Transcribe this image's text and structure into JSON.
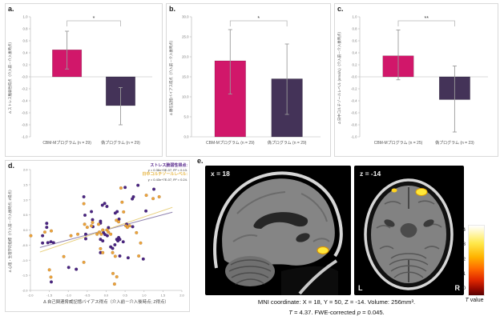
{
  "figure": {
    "panels": {
      "a": "a.",
      "b": "b.",
      "c": "c.",
      "d": "d.",
      "e": "e."
    }
  },
  "colors": {
    "cbm_bar": "#d1176a",
    "sham_bar": "#443358",
    "scatter_purple": "#4a2482",
    "scatter_orange": "#eda33b",
    "trend_purple": "#9083b0",
    "trend_yellow": "#e8cf7a",
    "legend_purple": "#5b2d8e",
    "legend_yellow": "#e6b33c"
  },
  "chart_data": [
    {
      "panel": "a",
      "type": "bar",
      "ylabel": "Δ ストレス脆弱性得点（介入前－介入後時点）",
      "ylim": [
        -1.0,
        1.0
      ],
      "ytick_step": 0.2,
      "categories": [
        "CBM-Mプログラム (n = 29)",
        "偽プログラム (n = 29)"
      ],
      "values": [
        0.45,
        -0.48
      ],
      "errors_low": [
        0.13,
        -0.8
      ],
      "errors_high": [
        0.76,
        -0.18
      ],
      "bar_colors": [
        "#d1176a",
        "#443358"
      ],
      "significance": "*"
    },
    {
      "panel": "b",
      "type": "bar",
      "ylabel": "Δ 顕在記憶バイアス得点（介入前－介入後時点）",
      "ylim": [
        0.0,
        30.0
      ],
      "ytick_step": 5.0,
      "categories": [
        "CBM-Mプログラム (n = 29)",
        "偽プログラム (n = 29)"
      ],
      "values": [
        19.0,
        14.5
      ],
      "errors_low": [
        10.7,
        5.6
      ],
      "errors_high": [
        26.8,
        23.2
      ],
      "bar_colors": [
        "#d1176a",
        "#443358"
      ],
      "significance": "*"
    },
    {
      "panel": "c",
      "type": "bar",
      "ylabel": "Δ 日中コルチゾールレベル (nmol/L)（介入前－介入後時点）",
      "ylim": [
        -1.0,
        1.0
      ],
      "ytick_step": 0.2,
      "categories": [
        "CBM-Mプログラム (n = 25)",
        "偽プログラム (n = 23)"
      ],
      "values": [
        0.35,
        -0.38
      ],
      "errors_low": [
        -0.05,
        -0.92
      ],
      "errors_high": [
        0.78,
        0.18
      ],
      "bar_colors": [
        "#d1176a",
        "#443358"
      ],
      "significance": "**"
    },
    {
      "panel": "d",
      "type": "scatter",
      "xlabel": "Δ 自己関連脅威記憶バイアス得点（介入前－介入後時点; Z得点）",
      "ylabel": "Δ 心理・生理学的指標（介入前－介入後時点; Z得点）",
      "xlim": [
        -2.0,
        2.0
      ],
      "ylim": [
        -2.0,
        2.0
      ],
      "tick_step": 0.5,
      "series": [
        {
          "name": "ストレス脆弱性得点:",
          "equation": "y = 0.36x+3E-07, R² = 0.13.",
          "point_color": "#4a2482",
          "line_color": "#9083b0",
          "trend": {
            "x1": -1.75,
            "y1": -0.58,
            "x2": 1.75,
            "y2": 0.59
          },
          "points": [
            [
              -1.57,
              0.22
            ],
            [
              -1.57,
              0.09
            ],
            [
              -1.68,
              -0.19
            ],
            [
              -1.68,
              -0.43
            ],
            [
              -1.54,
              -0.42
            ],
            [
              -1.46,
              -0.39
            ],
            [
              -1.39,
              -0.42
            ],
            [
              -1.45,
              -1.72
            ],
            [
              -0.99,
              -1.24
            ],
            [
              -0.79,
              -1.3
            ],
            [
              -0.59,
              1.1
            ],
            [
              -0.56,
              0.49
            ],
            [
              -0.39,
              0.61
            ],
            [
              -0.36,
              0.34
            ],
            [
              -0.54,
              -0.14
            ],
            [
              -0.54,
              -0.29
            ],
            [
              -0.35,
              0.11
            ],
            [
              -0.15,
              0.29
            ],
            [
              -0.15,
              0.23
            ],
            [
              -0.1,
              0.82
            ],
            [
              -0.04,
              0.88
            ],
            [
              0.02,
              0.78
            ],
            [
              0.06,
              0.08
            ],
            [
              -0.07,
              -0.09
            ],
            [
              -0.03,
              -0.15
            ],
            [
              0.03,
              -0.19
            ],
            [
              -0.15,
              -0.31
            ],
            [
              -0.09,
              -0.36
            ],
            [
              -0.15,
              -0.75
            ],
            [
              0.12,
              -0.56
            ],
            [
              0.17,
              -0.61
            ],
            [
              0.23,
              -0.49
            ],
            [
              0.28,
              -0.31
            ],
            [
              0.31,
              -0.36
            ],
            [
              0.33,
              -0.25
            ],
            [
              0.36,
              -0.31
            ],
            [
              0.24,
              0.56
            ],
            [
              0.29,
              0.61
            ],
            [
              0.34,
              0.36
            ],
            [
              0.5,
              1.41
            ],
            [
              0.84,
              1.48
            ],
            [
              1.26,
              1.35
            ],
            [
              1.05,
              0.63
            ],
            [
              0.54,
              0.19
            ],
            [
              0.7,
              0.11
            ],
            [
              0.36,
              -0.86
            ],
            [
              0.58,
              -0.92
            ],
            [
              0.98,
              -0.96
            ],
            [
              0.45,
              -0.39
            ],
            [
              0.72,
              1.1
            ],
            [
              0.69,
              1.03
            ]
          ]
        },
        {
          "name": "日中コルチゾールレベル:",
          "equation": "y = 0.43x+7E-07, R² = 0.24.",
          "point_color": "#eda33b",
          "line_color": "#e8cf7a",
          "trend": {
            "x1": -1.75,
            "y1": -0.73,
            "x2": 1.75,
            "y2": 0.75
          },
          "points": [
            [
              -1.99,
              -0.19
            ],
            [
              -1.62,
              -0.07
            ],
            [
              -1.45,
              -0.03
            ],
            [
              -1.5,
              -1.32
            ],
            [
              -1.46,
              -1.56
            ],
            [
              -1.12,
              -0.88
            ],
            [
              -0.93,
              -0.19
            ],
            [
              -0.75,
              -0.14
            ],
            [
              -0.59,
              0.87
            ],
            [
              -0.57,
              0.19
            ],
            [
              -0.5,
              0.09
            ],
            [
              -0.39,
              0.14
            ],
            [
              -0.36,
              0.25
            ],
            [
              -0.59,
              -1.07
            ],
            [
              -0.24,
              -0.14
            ],
            [
              -0.2,
              0.19
            ],
            [
              -0.18,
              -0.07
            ],
            [
              -0.13,
              -0.14
            ],
            [
              -0.09,
              0.0
            ],
            [
              0.02,
              0.0
            ],
            [
              0.06,
              -0.07
            ],
            [
              0.12,
              -0.14
            ],
            [
              -0.09,
              -0.75
            ],
            [
              -0.15,
              -0.62
            ],
            [
              0.17,
              -0.75
            ],
            [
              0.24,
              -0.87
            ],
            [
              0.18,
              -1.44
            ],
            [
              0.22,
              -1.79
            ],
            [
              0.28,
              -1.55
            ],
            [
              0.27,
              0.32
            ],
            [
              0.33,
              0.27
            ],
            [
              0.39,
              1.39
            ],
            [
              0.42,
              0.92
            ],
            [
              0.46,
              0.6
            ],
            [
              0.52,
              0.14
            ],
            [
              0.56,
              0.09
            ],
            [
              0.62,
              0.14
            ],
            [
              1.06,
              1.15
            ],
            [
              1.24,
              1.04
            ],
            [
              1.4,
              1.1
            ],
            [
              0.8,
              -0.09
            ],
            [
              0.91,
              -0.43
            ],
            [
              0.86,
              -0.86
            ]
          ]
        }
      ]
    }
  ],
  "brain": {
    "sagittal_label": "x = 18",
    "axial_label": "z = -14",
    "left_marker": "L",
    "right_marker": "R",
    "colorbar": {
      "ticks": [
        "4",
        "3",
        "2",
        "1",
        "0"
      ],
      "label_t": "T",
      "label_rest": " value"
    },
    "caption_line1": "MNI coordinate: X = 18, Y = 50, Z = -14. Volume: 256mm³.",
    "caption2_t": "T",
    "caption2_mid": " = 4.37. FWE-corrected ",
    "caption2_p": "p",
    "caption2_end": " = 0.045."
  }
}
